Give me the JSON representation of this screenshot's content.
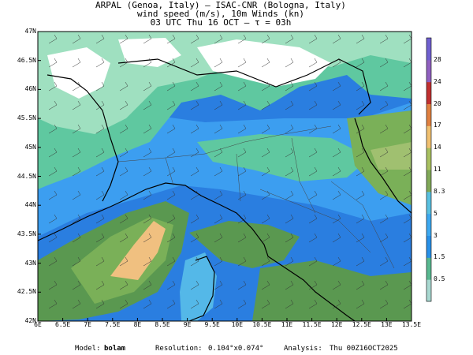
{
  "header": {
    "line1": "ARPAL (Genoa, Italy)  —  ISAC-CNR (Bologna, Italy)",
    "line2": "wind speed (m/s), 10m Winds (kn)",
    "line3": "03 UTC Thu 16 OCT  —  τ = 03h"
  },
  "axes": {
    "lat_labels": [
      "47N",
      "46.5N",
      "46N",
      "45.5N",
      "45N",
      "44.5N",
      "44N",
      "43.5N",
      "43N",
      "42.5N",
      "42N"
    ],
    "lon_labels": [
      "6E",
      "6.5E",
      "7E",
      "7.5E",
      "8E",
      "8.5E",
      "9E",
      "9.5E",
      "10E",
      "10.5E",
      "11E",
      "11.5E",
      "12E",
      "12.5E",
      "13E",
      "13.5E"
    ]
  },
  "colorbar": {
    "labels": [
      "0.5",
      "1.5",
      "3",
      "5",
      "8.3",
      "11",
      "14",
      "17",
      "20",
      "24",
      "28"
    ],
    "colors": [
      "#a8d8d0",
      "#58b890",
      "#2890e8",
      "#3ca8f0",
      "#58c0e0",
      "#80a858",
      "#a8c060",
      "#f0c070",
      "#e08040",
      "#c03030",
      "#9060c0",
      "#7060d0"
    ]
  },
  "map_colors": {
    "calm": "#ffffff",
    "light": "#9fe0c0",
    "low": "#5fc8a0",
    "blue_dark": "#2a7ee0",
    "blue": "#3c9ef0",
    "cyan": "#54b8e8",
    "green_dark": "#5a9850",
    "green": "#7ab058",
    "green_light": "#a0c070",
    "orange": "#f0c080"
  },
  "footer": {
    "model_label": "Model:",
    "model_value": "bolam",
    "resolution_label": "Resolution:",
    "resolution_value": "0.104°x0.074°",
    "analysis_label": "Analysis:",
    "analysis_value": "Thu 00Z16OCT2025"
  }
}
